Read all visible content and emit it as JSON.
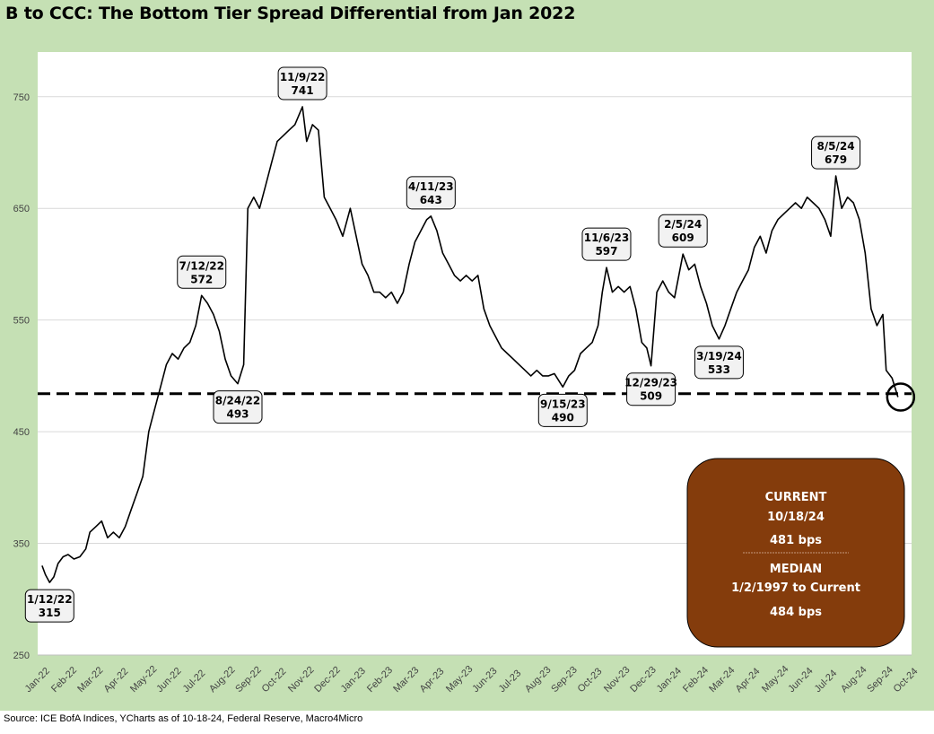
{
  "chart_data": {
    "type": "line",
    "title": "B to CCC: The Bottom Tier Spread Differential from Jan 2022",
    "source": "Source: ICE BofA Indices, YCharts as of 10-18-24, Federal Reserve, Macro4Micro",
    "ylim": [
      250,
      790
    ],
    "yticks": [
      250,
      350,
      450,
      550,
      650,
      750
    ],
    "x_tick_labels": [
      "Jan-22",
      "Feb-22",
      "Mar-22",
      "Apr-22",
      "May-22",
      "Jun-22",
      "Jul-22",
      "Aug-22",
      "Sep-22",
      "Oct-22",
      "Nov-22",
      "Dec-22",
      "Jan-23",
      "Feb-23",
      "Mar-23",
      "Apr-23",
      "May-23",
      "Jun-23",
      "Jul-23",
      "Aug-23",
      "Sep-23",
      "Oct-23",
      "Nov-23",
      "Dec-23",
      "Jan-24",
      "Feb-24",
      "Mar-24",
      "Apr-24",
      "May-24",
      "Jun-24",
      "Jul-24",
      "Aug-24",
      "Sep-24",
      "Oct-24"
    ],
    "grid": "horizontal",
    "median_line": 484,
    "series": [
      {
        "points": [
          [
            "2022-01-03",
            330
          ],
          [
            "2022-01-07",
            322
          ],
          [
            "2022-01-12",
            315
          ],
          [
            "2022-01-17",
            320
          ],
          [
            "2022-01-22",
            332
          ],
          [
            "2022-01-28",
            338
          ],
          [
            "2022-02-03",
            340
          ],
          [
            "2022-02-10",
            336
          ],
          [
            "2022-02-17",
            338
          ],
          [
            "2022-02-24",
            345
          ],
          [
            "2022-03-01",
            360
          ],
          [
            "2022-03-08",
            365
          ],
          [
            "2022-03-15",
            370
          ],
          [
            "2022-03-22",
            355
          ],
          [
            "2022-03-29",
            360
          ],
          [
            "2022-04-05",
            355
          ],
          [
            "2022-04-12",
            365
          ],
          [
            "2022-04-19",
            380
          ],
          [
            "2022-04-26",
            395
          ],
          [
            "2022-05-03",
            410
          ],
          [
            "2022-05-10",
            450
          ],
          [
            "2022-05-17",
            470
          ],
          [
            "2022-05-24",
            490
          ],
          [
            "2022-05-31",
            510
          ],
          [
            "2022-06-07",
            520
          ],
          [
            "2022-06-14",
            515
          ],
          [
            "2022-06-21",
            525
          ],
          [
            "2022-06-28",
            530
          ],
          [
            "2022-07-05",
            545
          ],
          [
            "2022-07-12",
            572
          ],
          [
            "2022-07-19",
            565
          ],
          [
            "2022-07-26",
            555
          ],
          [
            "2022-08-02",
            540
          ],
          [
            "2022-08-09",
            515
          ],
          [
            "2022-08-16",
            500
          ],
          [
            "2022-08-24",
            493
          ],
          [
            "2022-08-31",
            510
          ],
          [
            "2022-09-05",
            650
          ],
          [
            "2022-09-12",
            660
          ],
          [
            "2022-09-19",
            650
          ],
          [
            "2022-09-26",
            670
          ],
          [
            "2022-10-03",
            690
          ],
          [
            "2022-10-10",
            710
          ],
          [
            "2022-10-17",
            715
          ],
          [
            "2022-10-24",
            720
          ],
          [
            "2022-10-31",
            725
          ],
          [
            "2022-11-09",
            741
          ],
          [
            "2022-11-14",
            710
          ],
          [
            "2022-11-21",
            725
          ],
          [
            "2022-11-28",
            720
          ],
          [
            "2022-12-05",
            660
          ],
          [
            "2022-12-12",
            650
          ],
          [
            "2022-12-19",
            640
          ],
          [
            "2022-12-27",
            625
          ],
          [
            "2023-01-05",
            650
          ],
          [
            "2023-01-12",
            625
          ],
          [
            "2023-01-19",
            600
          ],
          [
            "2023-01-26",
            590
          ],
          [
            "2023-02-02",
            575
          ],
          [
            "2023-02-09",
            575
          ],
          [
            "2023-02-16",
            570
          ],
          [
            "2023-02-23",
            575
          ],
          [
            "2023-03-02",
            565
          ],
          [
            "2023-03-09",
            575
          ],
          [
            "2023-03-16",
            600
          ],
          [
            "2023-03-23",
            620
          ],
          [
            "2023-03-30",
            630
          ],
          [
            "2023-04-06",
            640
          ],
          [
            "2023-04-11",
            643
          ],
          [
            "2023-04-18",
            630
          ],
          [
            "2023-04-25",
            610
          ],
          [
            "2023-05-02",
            600
          ],
          [
            "2023-05-09",
            590
          ],
          [
            "2023-05-16",
            585
          ],
          [
            "2023-05-23",
            590
          ],
          [
            "2023-05-30",
            585
          ],
          [
            "2023-06-06",
            590
          ],
          [
            "2023-06-13",
            560
          ],
          [
            "2023-06-20",
            545
          ],
          [
            "2023-06-27",
            535
          ],
          [
            "2023-07-04",
            525
          ],
          [
            "2023-07-11",
            520
          ],
          [
            "2023-07-18",
            515
          ],
          [
            "2023-07-25",
            510
          ],
          [
            "2023-08-01",
            505
          ],
          [
            "2023-08-08",
            500
          ],
          [
            "2023-08-15",
            505
          ],
          [
            "2023-08-22",
            500
          ],
          [
            "2023-08-29",
            500
          ],
          [
            "2023-09-05",
            502
          ],
          [
            "2023-09-15",
            490
          ],
          [
            "2023-09-22",
            500
          ],
          [
            "2023-09-29",
            505
          ],
          [
            "2023-10-06",
            520
          ],
          [
            "2023-10-13",
            525
          ],
          [
            "2023-10-20",
            530
          ],
          [
            "2023-10-27",
            545
          ],
          [
            "2023-11-01",
            575
          ],
          [
            "2023-11-06",
            597
          ],
          [
            "2023-11-13",
            575
          ],
          [
            "2023-11-20",
            580
          ],
          [
            "2023-11-27",
            575
          ],
          [
            "2023-12-04",
            580
          ],
          [
            "2023-12-11",
            560
          ],
          [
            "2023-12-18",
            530
          ],
          [
            "2023-12-24",
            525
          ],
          [
            "2023-12-29",
            509
          ],
          [
            "2024-01-05",
            575
          ],
          [
            "2024-01-12",
            585
          ],
          [
            "2024-01-19",
            575
          ],
          [
            "2024-01-26",
            570
          ],
          [
            "2024-02-05",
            609
          ],
          [
            "2024-02-12",
            595
          ],
          [
            "2024-02-19",
            600
          ],
          [
            "2024-02-26",
            580
          ],
          [
            "2024-03-04",
            565
          ],
          [
            "2024-03-11",
            545
          ],
          [
            "2024-03-19",
            533
          ],
          [
            "2024-03-26",
            545
          ],
          [
            "2024-04-02",
            560
          ],
          [
            "2024-04-09",
            575
          ],
          [
            "2024-04-16",
            585
          ],
          [
            "2024-04-23",
            595
          ],
          [
            "2024-04-30",
            615
          ],
          [
            "2024-05-07",
            625
          ],
          [
            "2024-05-14",
            610
          ],
          [
            "2024-05-21",
            630
          ],
          [
            "2024-05-28",
            640
          ],
          [
            "2024-06-04",
            645
          ],
          [
            "2024-06-11",
            650
          ],
          [
            "2024-06-18",
            655
          ],
          [
            "2024-06-25",
            650
          ],
          [
            "2024-07-02",
            660
          ],
          [
            "2024-07-09",
            655
          ],
          [
            "2024-07-16",
            650
          ],
          [
            "2024-07-23",
            640
          ],
          [
            "2024-07-30",
            625
          ],
          [
            "2024-08-05",
            679
          ],
          [
            "2024-08-12",
            650
          ],
          [
            "2024-08-19",
            660
          ],
          [
            "2024-08-26",
            655
          ],
          [
            "2024-09-02",
            640
          ],
          [
            "2024-09-09",
            610
          ],
          [
            "2024-09-16",
            560
          ],
          [
            "2024-09-23",
            545
          ],
          [
            "2024-09-30",
            555
          ],
          [
            "2024-10-04",
            505
          ],
          [
            "2024-10-11",
            498
          ],
          [
            "2024-10-18",
            481
          ]
        ]
      }
    ],
    "annotations": [
      {
        "date_label": "1/12/22",
        "value_label": "315",
        "x": "2022-01-12",
        "y": 315,
        "side": "below"
      },
      {
        "date_label": "7/12/22",
        "value_label": "572",
        "x": "2022-07-12",
        "y": 572,
        "side": "above"
      },
      {
        "date_label": "8/24/22",
        "value_label": "493",
        "x": "2022-08-24",
        "y": 493,
        "side": "below"
      },
      {
        "date_label": "11/9/22",
        "value_label": "741",
        "x": "2022-11-09",
        "y": 741,
        "side": "above"
      },
      {
        "date_label": "4/11/23",
        "value_label": "643",
        "x": "2023-04-11",
        "y": 643,
        "side": "above"
      },
      {
        "date_label": "9/15/23",
        "value_label": "490",
        "x": "2023-09-15",
        "y": 490,
        "side": "below"
      },
      {
        "date_label": "11/6/23",
        "value_label": "597",
        "x": "2023-11-06",
        "y": 597,
        "side": "above"
      },
      {
        "date_label": "12/29/23",
        "value_label": "509",
        "x": "2023-12-29",
        "y": 509,
        "side": "below"
      },
      {
        "date_label": "2/5/24",
        "value_label": "609",
        "x": "2024-02-05",
        "y": 609,
        "side": "above"
      },
      {
        "date_label": "3/19/24",
        "value_label": "533",
        "x": "2024-03-19",
        "y": 533,
        "side": "below"
      },
      {
        "date_label": "8/5/24",
        "value_label": "679",
        "x": "2024-08-05",
        "y": 679,
        "side": "above"
      }
    ],
    "info_box": {
      "current_label": "CURRENT",
      "current_date": "10/18/24",
      "current_value": "481 bps",
      "median_label": "MEDIAN",
      "median_range": "1/2/1997 to Current",
      "median_value": "484 bps"
    },
    "colors": {
      "line": "#000000",
      "frame": "#c5e0b4",
      "info_box": "#843c0c",
      "grid": "#d9d9d9"
    }
  }
}
